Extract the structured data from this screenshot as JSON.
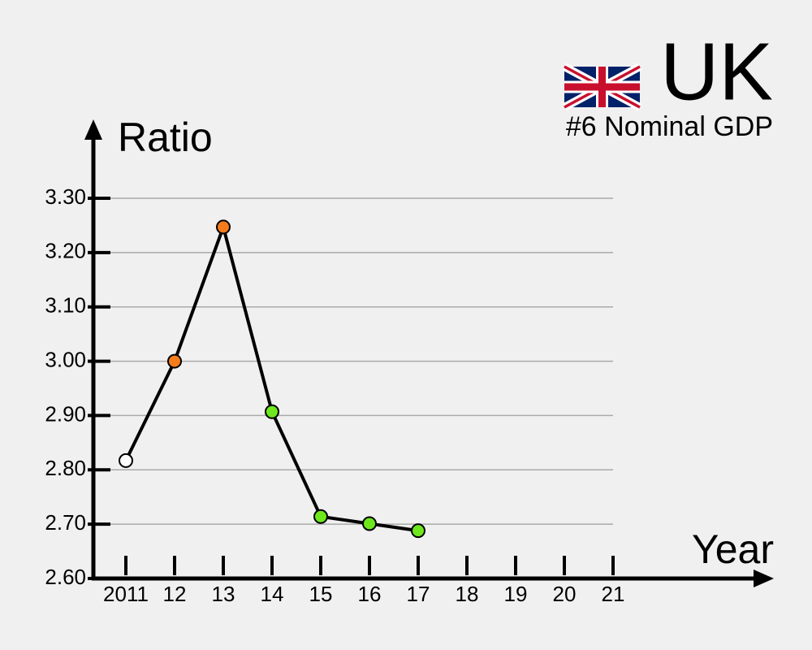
{
  "chart_data": {
    "type": "line",
    "title": "UK",
    "subtitle": "#6 Nominal GDP",
    "y_label": "Ratio",
    "x_label": "Year",
    "categories": [
      "2011",
      "12",
      "13",
      "14",
      "15",
      "16",
      "17",
      "18",
      "19",
      "20",
      "21"
    ],
    "series": [
      {
        "color": "#000000",
        "values": [
          2.817,
          3.0,
          3.247,
          2.907,
          2.714,
          2.701,
          2.688,
          null,
          null,
          null,
          null
        ],
        "point_colors": [
          "#ffffff",
          "#f47c1c",
          "#f47c1c",
          "#6ee81c",
          "#6ee81c",
          "#6ee81c",
          "#6ee81c",
          null,
          null,
          null,
          null
        ]
      }
    ],
    "ylim": [
      2.6,
      3.3
    ],
    "yticks": [
      {
        "value": 2.6,
        "label": "2.60"
      },
      {
        "value": 2.7,
        "label": "2.70"
      },
      {
        "value": 2.8,
        "label": "2.80"
      },
      {
        "value": 2.9,
        "label": "2.90"
      },
      {
        "value": 3.0,
        "label": "3.00"
      },
      {
        "value": 3.1,
        "label": "3.10"
      },
      {
        "value": 3.2,
        "label": "3.20"
      },
      {
        "value": 3.3,
        "label": "3.30"
      }
    ],
    "grid": true
  }
}
